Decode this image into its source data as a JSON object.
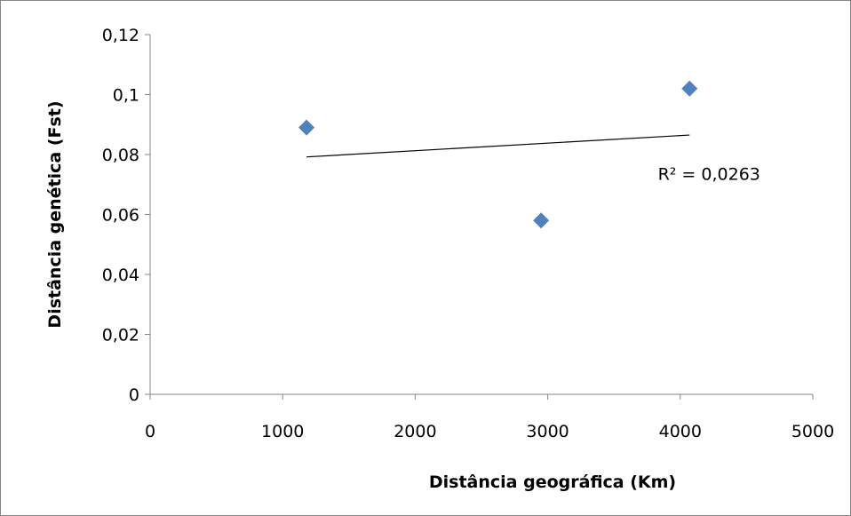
{
  "chart_data": {
    "type": "scatter",
    "title": "",
    "xlabel": "Distância geográfica (Km)",
    "ylabel": "Distância genética (Fst)",
    "xlim": [
      0,
      5000
    ],
    "ylim": [
      0,
      0.12
    ],
    "x_ticks": [
      0,
      1000,
      2000,
      3000,
      4000,
      5000
    ],
    "x_tick_labels": [
      "0",
      "1000",
      "2000",
      "3000",
      "4000",
      "5000"
    ],
    "y_ticks": [
      0,
      0.02,
      0.04,
      0.06,
      0.08,
      0.1,
      0.12
    ],
    "y_tick_labels": [
      "0",
      "0,02",
      "0,04",
      "0,06",
      "0,08",
      "0,1",
      "0,12"
    ],
    "grid": false,
    "legend": "none",
    "series": [
      {
        "marker": "diamond",
        "color": "#4f81bd",
        "x": [
          1180,
          2950,
          4070
        ],
        "y": [
          0.089,
          0.058,
          0.102
        ]
      }
    ],
    "trendline": {
      "type": "linear",
      "x": [
        1180,
        4070
      ],
      "y": [
        0.0792,
        0.0865
      ],
      "color": "#000000",
      "label": "R² = 0,0263",
      "label_anchor": [
        3650,
        0.073
      ]
    }
  }
}
